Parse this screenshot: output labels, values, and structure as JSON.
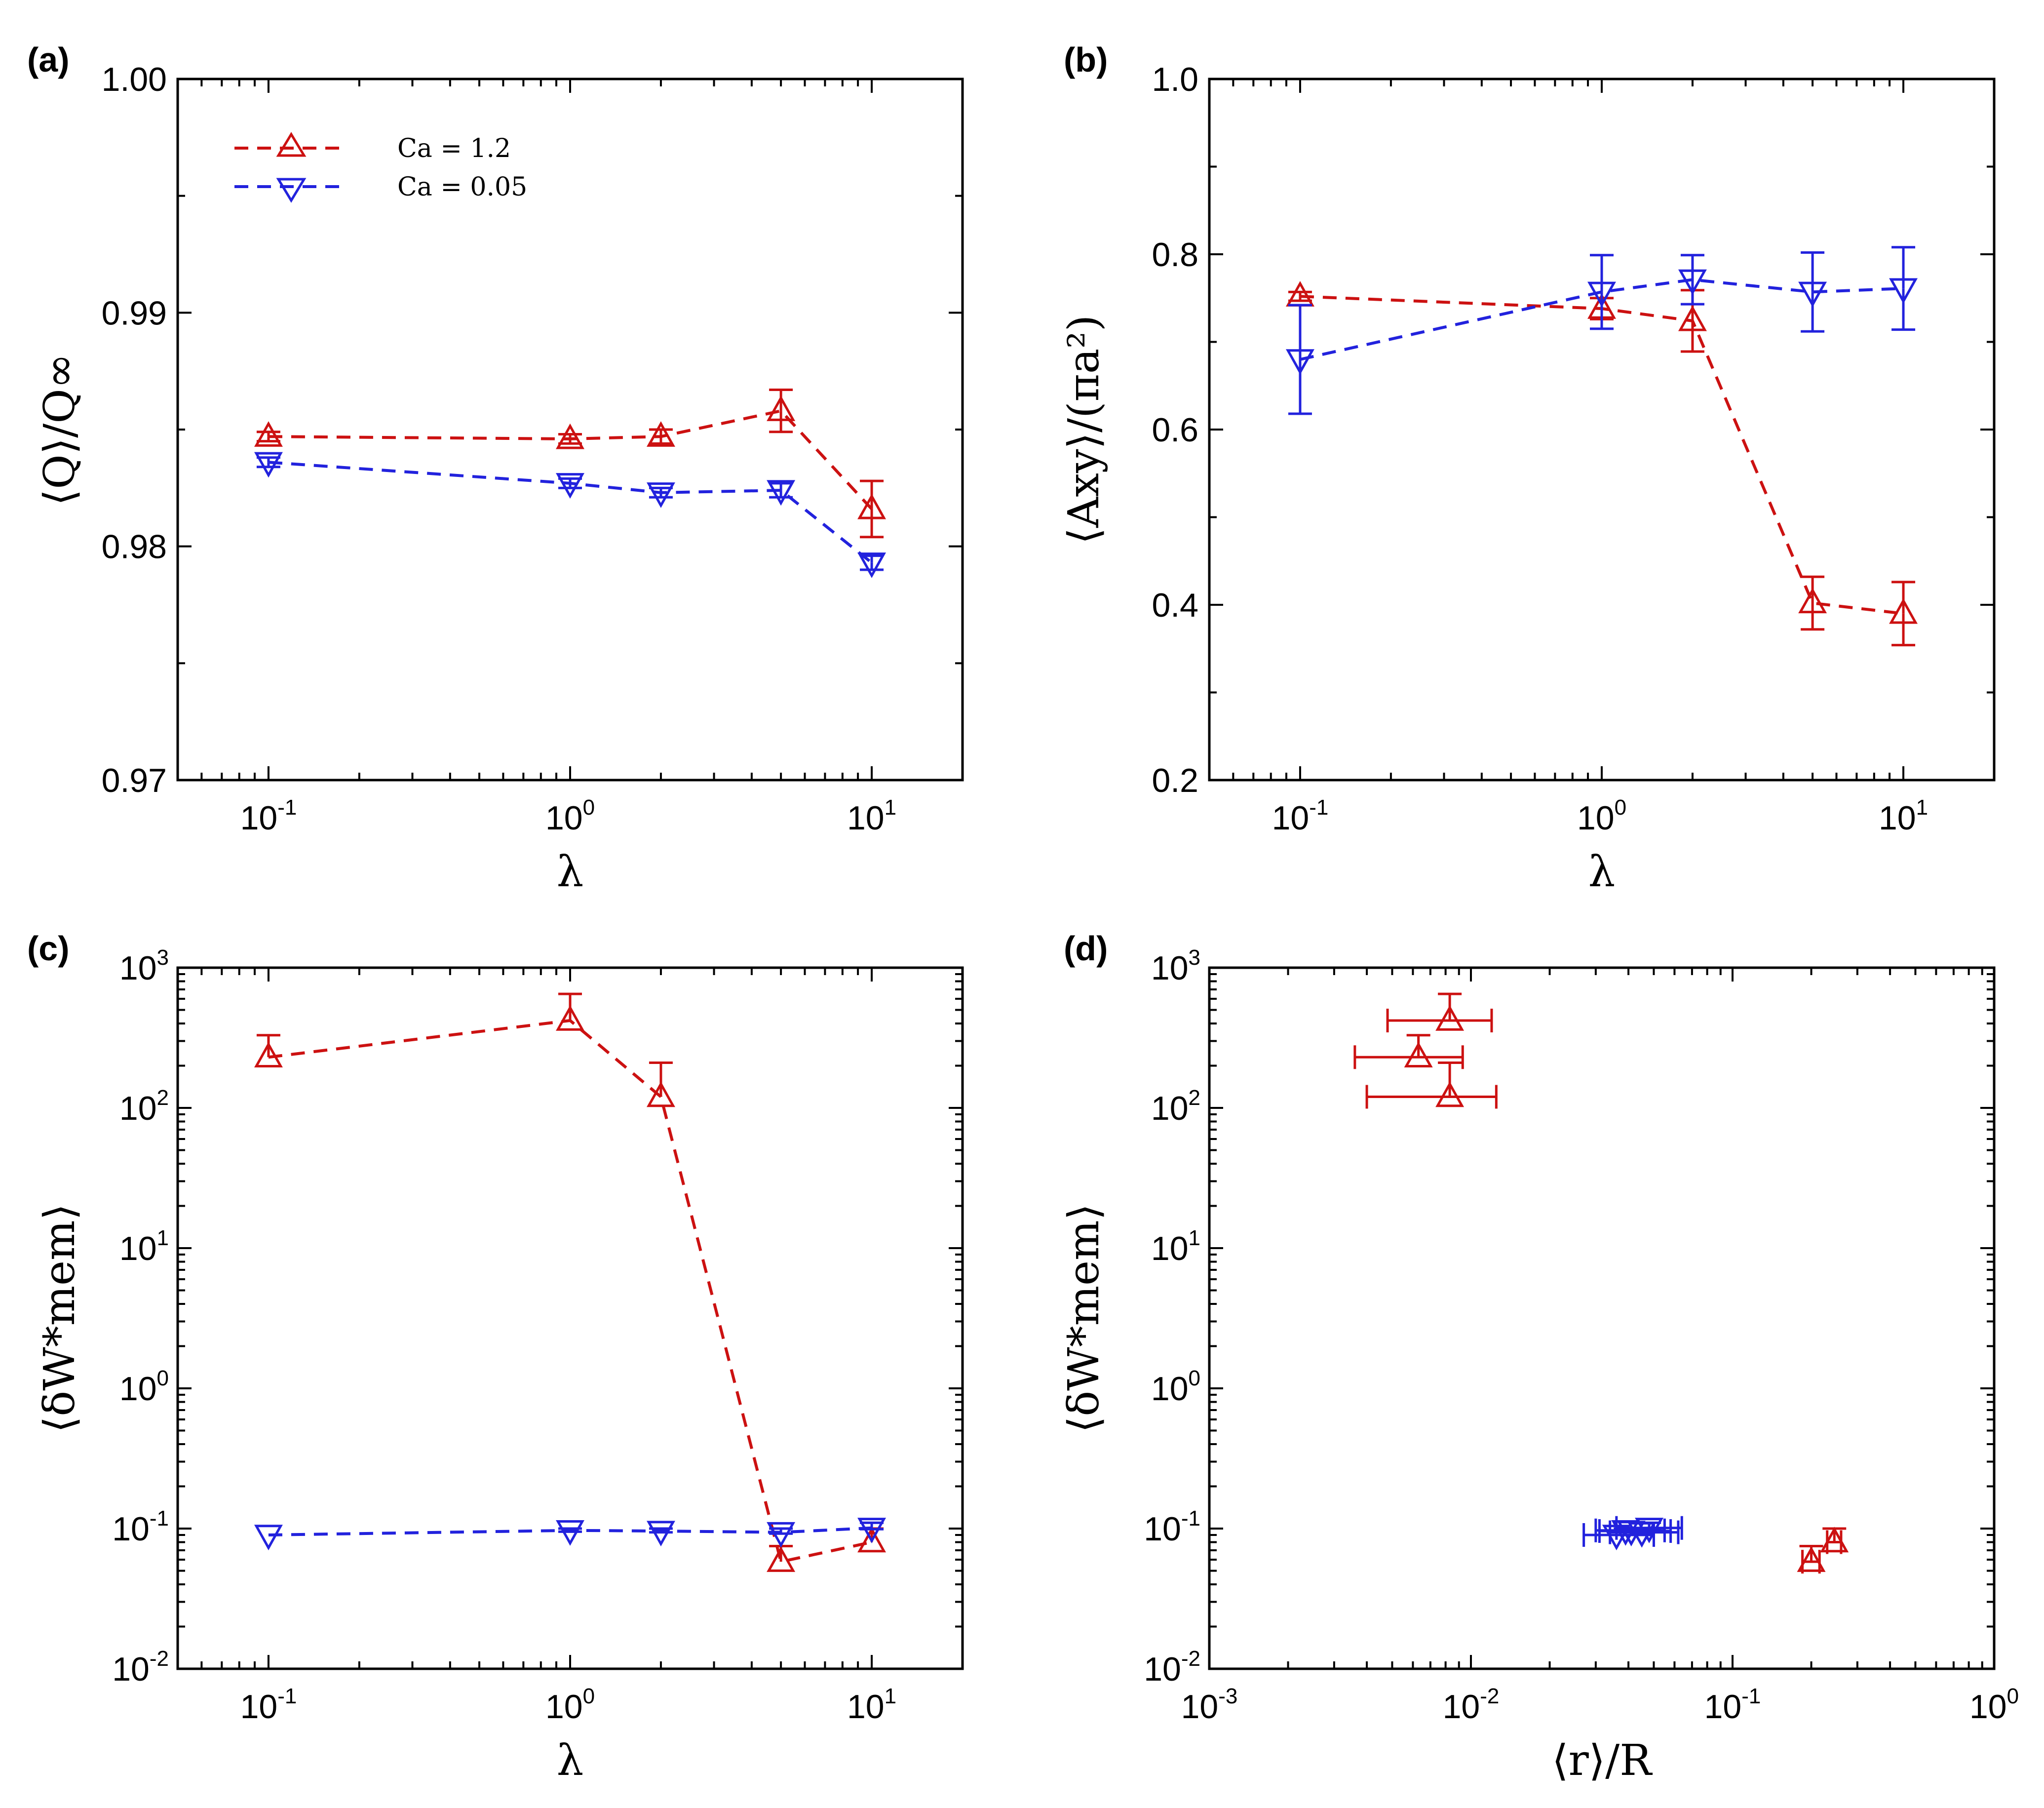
{
  "colors": {
    "red": "#cc1111",
    "blue": "#2222dd"
  },
  "legend": [
    {
      "label": "Ca = 1.2",
      "series": "red"
    },
    {
      "label": "Ca = 0.05",
      "series": "blue"
    }
  ],
  "chart_data": [
    {
      "panel": "(a)",
      "type": "line",
      "xscale": "log",
      "xlim": [
        0.05,
        20
      ],
      "ylim": [
        0.97,
        1.0
      ],
      "xticks": [
        {
          "v": 0.1,
          "base": "10",
          "exp": "-1"
        },
        {
          "v": 1,
          "base": "10",
          "exp": "0"
        },
        {
          "v": 10,
          "base": "10",
          "exp": "1"
        }
      ],
      "yticks": [
        {
          "v": 0.97,
          "label": "0.97"
        },
        {
          "v": 0.98,
          "label": "0.98"
        },
        {
          "v": 0.99,
          "label": "0.99"
        },
        {
          "v": 1.0,
          "label": "1.00"
        }
      ],
      "xlabel": "λ",
      "ylabel": "⟨Q⟩/Q∞",
      "legend_position": "top-left",
      "series": [
        {
          "name": "Ca = 1.2",
          "color": "red",
          "marker": "up-triangle",
          "x": [
            0.1,
            1,
            2,
            5,
            10
          ],
          "y": [
            0.9847,
            0.9846,
            0.9847,
            0.9858,
            0.9816
          ],
          "err": [
            0.0002,
            0.0002,
            0.0003,
            0.0009,
            0.0012
          ]
        },
        {
          "name": "Ca = 0.05",
          "color": "blue",
          "marker": "down-triangle",
          "x": [
            0.1,
            1,
            2,
            5,
            10
          ],
          "y": [
            0.9836,
            0.9827,
            0.9823,
            0.9824,
            0.9793
          ],
          "err": [
            0.0002,
            0.0002,
            0.0002,
            0.0003,
            0.0003
          ]
        }
      ]
    },
    {
      "panel": "(b)",
      "type": "line",
      "xscale": "log",
      "xlim": [
        0.05,
        20
      ],
      "ylim": [
        0.2,
        1.0
      ],
      "xticks": [
        {
          "v": 0.1,
          "base": "10",
          "exp": "-1"
        },
        {
          "v": 1,
          "base": "10",
          "exp": "0"
        },
        {
          "v": 10,
          "base": "10",
          "exp": "1"
        }
      ],
      "yticks": [
        {
          "v": 0.2,
          "label": "0.2"
        },
        {
          "v": 0.4,
          "label": "0.4"
        },
        {
          "v": 0.6,
          "label": "0.6"
        },
        {
          "v": 0.8,
          "label": "0.8"
        },
        {
          "v": 1.0,
          "label": "1.0"
        }
      ],
      "xlabel": "λ",
      "ylabel": "⟨Axy⟩/(πa²)",
      "series": [
        {
          "name": "Ca = 1.2",
          "color": "red",
          "marker": "up-triangle",
          "x": [
            0.1,
            1,
            2,
            5,
            10
          ],
          "y": [
            0.752,
            0.738,
            0.724,
            0.402,
            0.39
          ],
          "err": [
            0.005,
            0.012,
            0.035,
            0.03,
            0.036
          ]
        },
        {
          "name": "Ca = 0.05",
          "color": "blue",
          "marker": "down-triangle",
          "x": [
            0.1,
            1,
            2,
            5,
            10
          ],
          "y": [
            0.68,
            0.757,
            0.771,
            0.757,
            0.761
          ],
          "err": [
            0.062,
            0.042,
            0.028,
            0.045,
            0.047
          ]
        }
      ]
    },
    {
      "panel": "(c)",
      "type": "line",
      "xscale": "log",
      "yscale": "log",
      "xlim": [
        0.05,
        20
      ],
      "ylim": [
        0.01,
        1000
      ],
      "xticks": [
        {
          "v": 0.1,
          "base": "10",
          "exp": "-1"
        },
        {
          "v": 1,
          "base": "10",
          "exp": "0"
        },
        {
          "v": 10,
          "base": "10",
          "exp": "1"
        }
      ],
      "yticks": [
        {
          "v": 0.01,
          "base": "10",
          "exp": "-2"
        },
        {
          "v": 0.1,
          "base": "10",
          "exp": "-1"
        },
        {
          "v": 1,
          "base": "10",
          "exp": "0"
        },
        {
          "v": 10,
          "base": "10",
          "exp": "1"
        },
        {
          "v": 100,
          "base": "10",
          "exp": "2"
        },
        {
          "v": 1000,
          "base": "10",
          "exp": "3"
        }
      ],
      "xlabel": "λ",
      "ylabel": "⟨δW*mem⟩",
      "series": [
        {
          "name": "Ca = 1.2",
          "color": "red",
          "marker": "up-triangle",
          "x": [
            0.1,
            1,
            2,
            5,
            10
          ],
          "y": [
            230,
            420,
            120,
            0.058,
            0.08
          ],
          "err_hi": [
            330,
            650,
            210,
            0.075,
            0.1
          ],
          "err_lo": [
            230,
            420,
            120,
            0.058,
            0.08
          ]
        },
        {
          "name": "Ca = 0.05",
          "color": "blue",
          "marker": "down-triangle",
          "x": [
            0.1,
            1,
            2,
            5,
            10
          ],
          "y": [
            0.09,
            0.097,
            0.096,
            0.094,
            0.101
          ],
          "err_hi": [
            0.09,
            0.1,
            0.1,
            0.1,
            0.11
          ],
          "err_lo": [
            0.09,
            0.095,
            0.094,
            0.092,
            0.099
          ]
        }
      ]
    },
    {
      "panel": "(d)",
      "type": "scatter",
      "xscale": "log",
      "yscale": "log",
      "xlim": [
        0.001,
        1
      ],
      "ylim": [
        0.01,
        1000
      ],
      "xticks": [
        {
          "v": 0.001,
          "base": "10",
          "exp": "-3"
        },
        {
          "v": 0.01,
          "base": "10",
          "exp": "-2"
        },
        {
          "v": 0.1,
          "base": "10",
          "exp": "-1"
        },
        {
          "v": 1,
          "base": "10",
          "exp": "0"
        }
      ],
      "yticks": [
        {
          "v": 0.01,
          "base": "10",
          "exp": "-2"
        },
        {
          "v": 0.1,
          "base": "10",
          "exp": "-1"
        },
        {
          "v": 1,
          "base": "10",
          "exp": "0"
        },
        {
          "v": 10,
          "base": "10",
          "exp": "1"
        },
        {
          "v": 100,
          "base": "10",
          "exp": "2"
        },
        {
          "v": 1000,
          "base": "10",
          "exp": "3"
        }
      ],
      "xlabel": "⟨r⟩/R",
      "ylabel": "⟨δW*mem⟩",
      "series": [
        {
          "name": "Ca = 1.2",
          "color": "red",
          "marker": "up-triangle",
          "x": [
            0.0063,
            0.0083,
            0.0083,
            0.2,
            0.245
          ],
          "y": [
            230,
            420,
            120,
            0.058,
            0.08
          ],
          "xerr_lo": [
            0.0036,
            0.0048,
            0.004,
            0.185,
            0.23
          ],
          "xerr_hi": [
            0.0093,
            0.012,
            0.0125,
            0.215,
            0.26
          ],
          "err_hi": [
            330,
            650,
            210,
            0.075,
            0.1
          ],
          "err_lo": [
            230,
            420,
            120,
            0.058,
            0.08
          ]
        },
        {
          "name": "Ca = 0.05",
          "color": "blue",
          "marker": "down-triangle",
          "x": [
            0.036,
            0.039,
            0.041,
            0.045,
            0.048
          ],
          "y": [
            0.09,
            0.097,
            0.096,
            0.094,
            0.101
          ],
          "xerr_lo": [
            0.027,
            0.03,
            0.031,
            0.034,
            0.036
          ],
          "xerr_hi": [
            0.05,
            0.055,
            0.058,
            0.062,
            0.064
          ],
          "err_hi": [
            0.09,
            0.1,
            0.1,
            0.1,
            0.11
          ],
          "err_lo": [
            0.09,
            0.095,
            0.094,
            0.092,
            0.099
          ]
        }
      ]
    }
  ]
}
